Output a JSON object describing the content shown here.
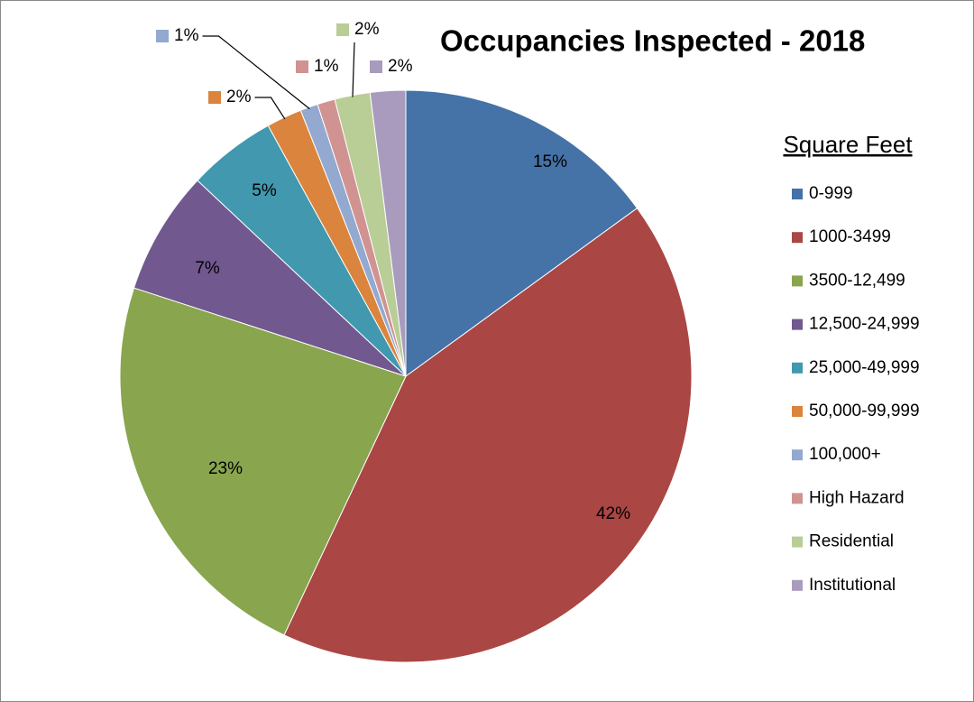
{
  "chart_data": {
    "type": "pie",
    "title": "Occupancies Inspected - 2018",
    "legend_title": "Square Feet",
    "categories": [
      "0-999",
      "1000-3499",
      "3500-12,499",
      "12,500-24,999",
      "25,000-49,999",
      "50,000-99,999",
      "100,000+",
      "High Hazard",
      "Residential",
      "Institutional"
    ],
    "values": [
      15,
      42,
      23,
      7,
      5,
      2,
      1,
      1,
      2,
      2
    ],
    "value_labels": [
      "15%",
      "42%",
      "23%",
      "7%",
      "5%",
      "2%",
      "1%",
      "1%",
      "2%",
      "2%"
    ],
    "colors": [
      "#4572A7",
      "#AA4643",
      "#89A54E",
      "#71588F",
      "#4198AF",
      "#DB843D",
      "#93A9CF",
      "#D19392",
      "#B9CD96",
      "#A99BBD"
    ],
    "legend": "right"
  }
}
